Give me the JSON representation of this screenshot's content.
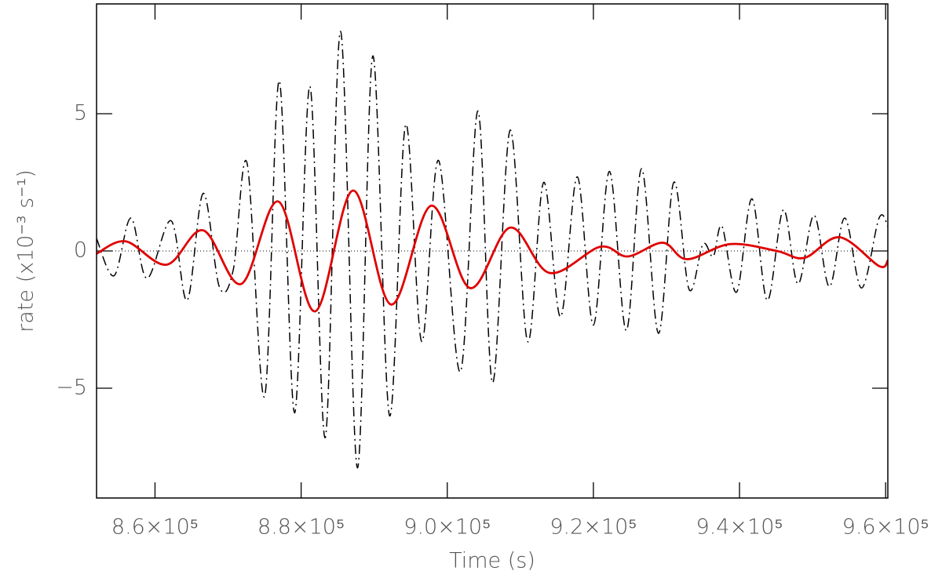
{
  "chart_data": {
    "type": "line",
    "xlabel": "Time (s)",
    "ylabel": "rate (x10⁻³ s⁻¹)",
    "xlim": [
      852000,
      960300
    ],
    "ylim": [
      -9,
      9
    ],
    "xticks": [
      {
        "value": 860000,
        "label": "8.6×10⁵"
      },
      {
        "value": 880000,
        "label": "8.8×10⁵"
      },
      {
        "value": 900000,
        "label": "9.0×10⁵"
      },
      {
        "value": 920000,
        "label": "9.2×10⁵"
      },
      {
        "value": 940000,
        "label": "9.4×10⁵"
      },
      {
        "value": 960000,
        "label": "9.6×10⁵"
      }
    ],
    "yticks": [
      {
        "value": -5,
        "label": "−5"
      },
      0,
      5
    ],
    "hline": 0,
    "series": [
      {
        "color": "#000000",
        "dash": "dashdot",
        "x": [
          852000,
          854400,
          856700,
          858900,
          862200,
          864400,
          866600,
          868800,
          870700,
          872600,
          875000,
          877000,
          879100,
          881200,
          883300,
          885400,
          887700,
          889800,
          892100,
          894300,
          896500,
          898800,
          901800,
          904200,
          906200,
          908600,
          911000,
          913200,
          915500,
          917800,
          920000,
          922200,
          924500,
          926600,
          928900,
          931000,
          933100,
          935000,
          936400,
          937600,
          939600,
          941700,
          943800,
          946000,
          948000,
          950200,
          952300,
          954400,
          956700,
          959100,
          960300
        ],
        "values": [
          0.45,
          -0.9,
          1.2,
          -1.0,
          1.1,
          -1.8,
          2.1,
          -1.3,
          -0.7,
          3.2,
          -5.3,
          6.2,
          -5.9,
          6.0,
          -6.8,
          8.0,
          -7.9,
          7.1,
          -6.0,
          4.6,
          -3.3,
          3.3,
          -4.4,
          5.1,
          -4.8,
          4.4,
          -3.3,
          2.5,
          -2.4,
          2.7,
          -2.7,
          2.9,
          -2.9,
          3.0,
          -3.0,
          2.5,
          -1.4,
          0.25,
          -0.2,
          0.9,
          -1.5,
          1.9,
          -1.8,
          1.5,
          -1.2,
          1.3,
          -1.3,
          1.2,
          -1.35,
          1.2,
          0.9
        ]
      },
      {
        "color": "#e00000",
        "dash": "solid",
        "x": [
          852000,
          856000,
          861600,
          866600,
          871800,
          876900,
          881900,
          887100,
          892300,
          897800,
          903100,
          908600,
          914000,
          920900,
          924700,
          929500,
          932800,
          938700,
          945100,
          948900,
          953700,
          959100,
          960300
        ],
        "values": [
          -0.1,
          0.35,
          -0.5,
          0.75,
          -1.2,
          1.8,
          -2.2,
          2.2,
          -1.95,
          1.65,
          -1.35,
          0.85,
          -0.8,
          0.15,
          -0.2,
          0.3,
          -0.3,
          0.25,
          0.0,
          -0.25,
          0.5,
          -0.55,
          -0.35
        ]
      }
    ]
  }
}
